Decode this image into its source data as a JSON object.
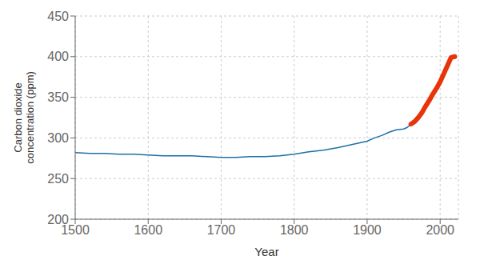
{
  "chart_data": {
    "type": "line",
    "xlabel": "Year",
    "ylabel": "Carbon dioxide\nconcentration (ppm)",
    "xlim": [
      1500,
      2025
    ],
    "ylim": [
      200,
      450
    ],
    "xticks": [
      1500,
      1600,
      1700,
      1800,
      1900,
      2000
    ],
    "yticks": [
      200,
      250,
      300,
      350,
      400,
      450
    ],
    "grid": true,
    "series": [
      {
        "color": "#1f6fa5",
        "x": [
          1500,
          1520,
          1540,
          1560,
          1580,
          1600,
          1620,
          1640,
          1660,
          1680,
          1700,
          1720,
          1740,
          1760,
          1780,
          1800,
          1820,
          1840,
          1860,
          1880,
          1900,
          1910,
          1920,
          1930,
          1940,
          1950,
          1955,
          1960
        ],
        "values": [
          282,
          281,
          281,
          280,
          280,
          279,
          278,
          278,
          278,
          277,
          276,
          276,
          277,
          277,
          278,
          280,
          283,
          285,
          288,
          292,
          296,
          300,
          303,
          307,
          310,
          311,
          313,
          317
        ]
      },
      {
        "color": "#e8340a",
        "x": [
          1960,
          1965,
          1970,
          1975,
          1980,
          1985,
          1990,
          1995,
          2000,
          2005,
          2010,
          2015,
          2020
        ],
        "values": [
          317,
          320,
          325,
          331,
          339,
          346,
          354,
          361,
          369,
          379,
          389,
          399,
          400
        ]
      }
    ]
  }
}
